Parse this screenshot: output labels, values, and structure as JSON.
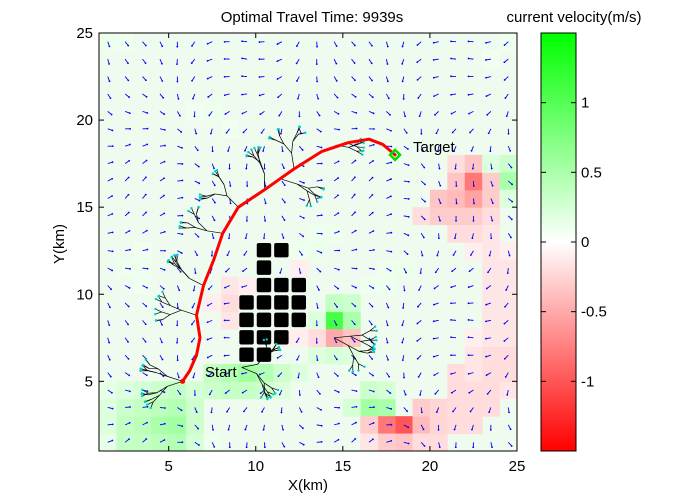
{
  "chart_data": {
    "type": "heatmap",
    "title": "Optimal Travel Time: 9939s",
    "xlabel": "X(km)",
    "ylabel": "Y(km)",
    "xlim": [
      1,
      25
    ],
    "ylim": [
      1,
      25
    ],
    "xticks": [
      5,
      10,
      15,
      20,
      25
    ],
    "yticks": [
      5,
      10,
      15,
      20,
      25
    ],
    "colorbar": {
      "label": "current velocity(m/s)",
      "range": [
        -1.5,
        1.5
      ],
      "ticks": [
        -1,
        -0.5,
        0,
        0.5,
        1
      ],
      "colors": {
        "negative": "#ff0000",
        "zero": "#ffffff",
        "positive": "#00ff00"
      }
    },
    "colors": {
      "path": "#ff0000",
      "tree": "#000000",
      "arrows": "#0000ff",
      "obstacle": "#000000",
      "target": "#00dd00"
    },
    "start": {
      "label": "Start",
      "x": 5.8,
      "y": 5
    },
    "target": {
      "label": "Target",
      "x": 18,
      "y": 18
    },
    "path": [
      [
        5.8,
        5
      ],
      [
        6.2,
        5.6
      ],
      [
        6.6,
        6.5
      ],
      [
        6.8,
        7.5
      ],
      [
        6.6,
        8.8
      ],
      [
        7.0,
        10.5
      ],
      [
        7.6,
        12.0
      ],
      [
        8.1,
        13.5
      ],
      [
        9.0,
        15.0
      ],
      [
        10.5,
        16.0
      ],
      [
        12.2,
        17.2
      ],
      [
        13.8,
        18.2
      ],
      [
        15.3,
        18.7
      ],
      [
        16.5,
        18.9
      ],
      [
        17.3,
        18.6
      ],
      [
        18,
        18
      ]
    ],
    "obstacles": [
      [
        10,
        12.5
      ],
      [
        11,
        12.5
      ],
      [
        10,
        11.5
      ],
      [
        10,
        10.5
      ],
      [
        11,
        10.5
      ],
      [
        12,
        10.5
      ],
      [
        9,
        9.5
      ],
      [
        10,
        9.5
      ],
      [
        11,
        9.5
      ],
      [
        12,
        9.5
      ],
      [
        9,
        8.5
      ],
      [
        10,
        8.5
      ],
      [
        11,
        8.5
      ],
      [
        12,
        8.5
      ],
      [
        9,
        7.5
      ],
      [
        10,
        7.5
      ],
      [
        11,
        7.5
      ],
      [
        9,
        6.5
      ],
      [
        10,
        6.5
      ]
    ],
    "field_cells": [
      [
        1.5,
        1.5,
        0.15
      ],
      [
        2.5,
        1.5,
        0.35
      ],
      [
        3.5,
        1.5,
        0.35
      ],
      [
        4.5,
        1.5,
        0.4
      ],
      [
        5.5,
        1.5,
        0.45
      ],
      [
        6.5,
        1.5,
        0.25
      ],
      [
        7.5,
        1.5,
        0.1
      ],
      [
        1.5,
        2.5,
        0.2
      ],
      [
        2.5,
        2.5,
        0.35
      ],
      [
        3.5,
        2.5,
        0.4
      ],
      [
        4.5,
        2.5,
        0.5
      ],
      [
        5.5,
        2.5,
        0.55
      ],
      [
        6.5,
        2.5,
        0.3
      ],
      [
        1.5,
        3.5,
        0.2
      ],
      [
        2.5,
        3.5,
        0.3
      ],
      [
        3.5,
        3.5,
        0.35
      ],
      [
        4.5,
        3.5,
        0.4
      ],
      [
        5.5,
        3.5,
        0.45
      ],
      [
        6.5,
        3.5,
        0.3
      ],
      [
        1.5,
        4.5,
        0.15
      ],
      [
        2.5,
        4.5,
        0.2
      ],
      [
        3.5,
        4.5,
        0.25
      ],
      [
        4.5,
        4.5,
        0.3
      ],
      [
        5.5,
        4.5,
        0.35
      ],
      [
        6.5,
        4.5,
        0.25
      ],
      [
        7.5,
        4.5,
        0.3
      ],
      [
        8.5,
        4.5,
        0.35
      ],
      [
        9.5,
        4.5,
        0.35
      ],
      [
        10.5,
        4.5,
        0.3
      ],
      [
        11.5,
        4.5,
        0.2
      ],
      [
        7.5,
        5.5,
        0.35
      ],
      [
        8.5,
        5.5,
        0.45
      ],
      [
        9.5,
        5.5,
        0.55
      ],
      [
        10.5,
        5.5,
        0.45
      ],
      [
        11.5,
        5.5,
        0.3
      ],
      [
        12.5,
        5.5,
        0.2
      ],
      [
        13.5,
        6.5,
        0.2
      ],
      [
        14.5,
        6.5,
        0.25
      ],
      [
        15.5,
        6.5,
        0.2
      ],
      [
        14.5,
        8.5,
        1.1
      ],
      [
        15.5,
        8.5,
        0.5
      ],
      [
        13.5,
        8.5,
        0.2
      ],
      [
        14.5,
        9.5,
        0.35
      ],
      [
        15.5,
        9.5,
        0.3
      ],
      [
        14.5,
        7.5,
        -0.5
      ],
      [
        13.5,
        7.5,
        -0.2
      ],
      [
        15.5,
        7.5,
        -0.35
      ],
      [
        16.5,
        3.5,
        0.55
      ],
      [
        17.5,
        3.5,
        0.5
      ],
      [
        15.5,
        3.5,
        0.25
      ],
      [
        16.5,
        4.5,
        0.3
      ],
      [
        17.5,
        4.5,
        0.25
      ],
      [
        18.5,
        2.5,
        -1.0
      ],
      [
        17.5,
        2.5,
        -0.8
      ],
      [
        19.5,
        2.5,
        -0.4
      ],
      [
        16.5,
        2.5,
        -0.3
      ],
      [
        18.5,
        1.5,
        -0.35
      ],
      [
        17.5,
        1.5,
        -0.3
      ],
      [
        16.5,
        1.5,
        -0.15
      ],
      [
        19.5,
        1.5,
        -0.2
      ],
      [
        20.5,
        1.5,
        -0.2
      ],
      [
        20.5,
        2.5,
        -0.25
      ],
      [
        21.5,
        2.5,
        -0.2
      ],
      [
        22.5,
        2.5,
        -0.2
      ],
      [
        19.5,
        3.5,
        -0.3
      ],
      [
        20.5,
        3.5,
        -0.25
      ],
      [
        21.5,
        3.5,
        -0.2
      ],
      [
        22.5,
        3.5,
        -0.2
      ],
      [
        23.5,
        3.5,
        -0.2
      ],
      [
        21.5,
        4.5,
        -0.2
      ],
      [
        22.5,
        4.5,
        -0.2
      ],
      [
        23.5,
        4.5,
        -0.2
      ],
      [
        24.5,
        4.5,
        -0.15
      ],
      [
        21.5,
        5.5,
        -0.2
      ],
      [
        22.5,
        5.5,
        -0.15
      ],
      [
        23.5,
        5.5,
        -0.2
      ],
      [
        24.5,
        5.5,
        -0.2
      ],
      [
        22.5,
        6.5,
        -0.15
      ],
      [
        23.5,
        6.5,
        -0.2
      ],
      [
        24.5,
        6.5,
        -0.2
      ],
      [
        22.5,
        7.5,
        -0.1
      ],
      [
        23.5,
        7.5,
        -0.15
      ],
      [
        24.5,
        7.5,
        -0.15
      ],
      [
        23.5,
        8.5,
        -0.15
      ],
      [
        24.5,
        8.5,
        -0.15
      ],
      [
        23.5,
        9.5,
        -0.15
      ],
      [
        24.5,
        9.5,
        -0.15
      ],
      [
        23.5,
        10.5,
        -0.15
      ],
      [
        24.5,
        10.5,
        -0.15
      ],
      [
        23.5,
        11.5,
        -0.15
      ],
      [
        24.5,
        11.5,
        -0.15
      ],
      [
        22.5,
        12.5,
        -0.1
      ],
      [
        23.5,
        12.5,
        -0.15
      ],
      [
        24.5,
        12.5,
        -0.1
      ],
      [
        21.5,
        13.5,
        -0.2
      ],
      [
        22.5,
        13.5,
        -0.2
      ],
      [
        23.5,
        13.5,
        -0.15
      ],
      [
        19.5,
        14.5,
        -0.2
      ],
      [
        20.5,
        14.5,
        -0.3
      ],
      [
        21.5,
        14.5,
        -0.3
      ],
      [
        22.5,
        14.5,
        -0.3
      ],
      [
        23.5,
        14.5,
        -0.2
      ],
      [
        20.5,
        15.5,
        -0.35
      ],
      [
        21.5,
        15.5,
        -0.4
      ],
      [
        22.5,
        15.5,
        -0.55
      ],
      [
        23.5,
        15.5,
        -0.3
      ],
      [
        21.5,
        16.5,
        -0.35
      ],
      [
        22.5,
        16.5,
        -0.8
      ],
      [
        23.5,
        16.5,
        -0.3
      ],
      [
        21.5,
        17.5,
        -0.2
      ],
      [
        22.5,
        17.5,
        -0.35
      ],
      [
        23.5,
        17.5,
        0.2
      ],
      [
        24.5,
        17.5,
        0.3
      ],
      [
        24.5,
        16.5,
        0.5
      ],
      [
        24.5,
        15.5,
        0.2
      ],
      [
        8.5,
        8.5,
        -0.15
      ],
      [
        8.5,
        9.5,
        -0.2
      ],
      [
        8.5,
        10.5,
        -0.15
      ],
      [
        9.5,
        10.5,
        -0.1
      ],
      [
        7.5,
        9.5,
        -0.1
      ],
      [
        11.5,
        7.5,
        -0.1
      ],
      [
        12.5,
        7.5,
        -0.1
      ],
      [
        12.5,
        11.5,
        -0.1
      ],
      [
        3.5,
        10.5,
        0.08
      ],
      [
        3.5,
        11.5,
        0.1
      ],
      [
        2.5,
        11.5,
        0.1
      ],
      [
        3.5,
        12.5,
        0.08
      ],
      [
        12.5,
        12.5,
        0.1
      ],
      [
        13.5,
        12.5,
        0.12
      ],
      [
        13.5,
        13.5,
        0.1
      ],
      [
        14.5,
        13.5,
        0.1
      ],
      [
        17.5,
        11.5,
        0.1
      ],
      [
        18.5,
        11.5,
        0.12
      ],
      [
        16.5,
        10.5,
        0.1
      ],
      [
        17.5,
        10.5,
        0.1
      ],
      [
        6.5,
        20.5,
        0.08
      ],
      [
        7.5,
        20.5,
        0.1
      ],
      [
        8.5,
        19.5,
        0.08
      ],
      [
        1.5,
        24.5,
        0.12
      ],
      [
        2.5,
        24.5,
        0.1
      ],
      [
        24.5,
        24.5,
        0.1
      ],
      [
        23.5,
        23.5,
        0.08
      ]
    ]
  }
}
